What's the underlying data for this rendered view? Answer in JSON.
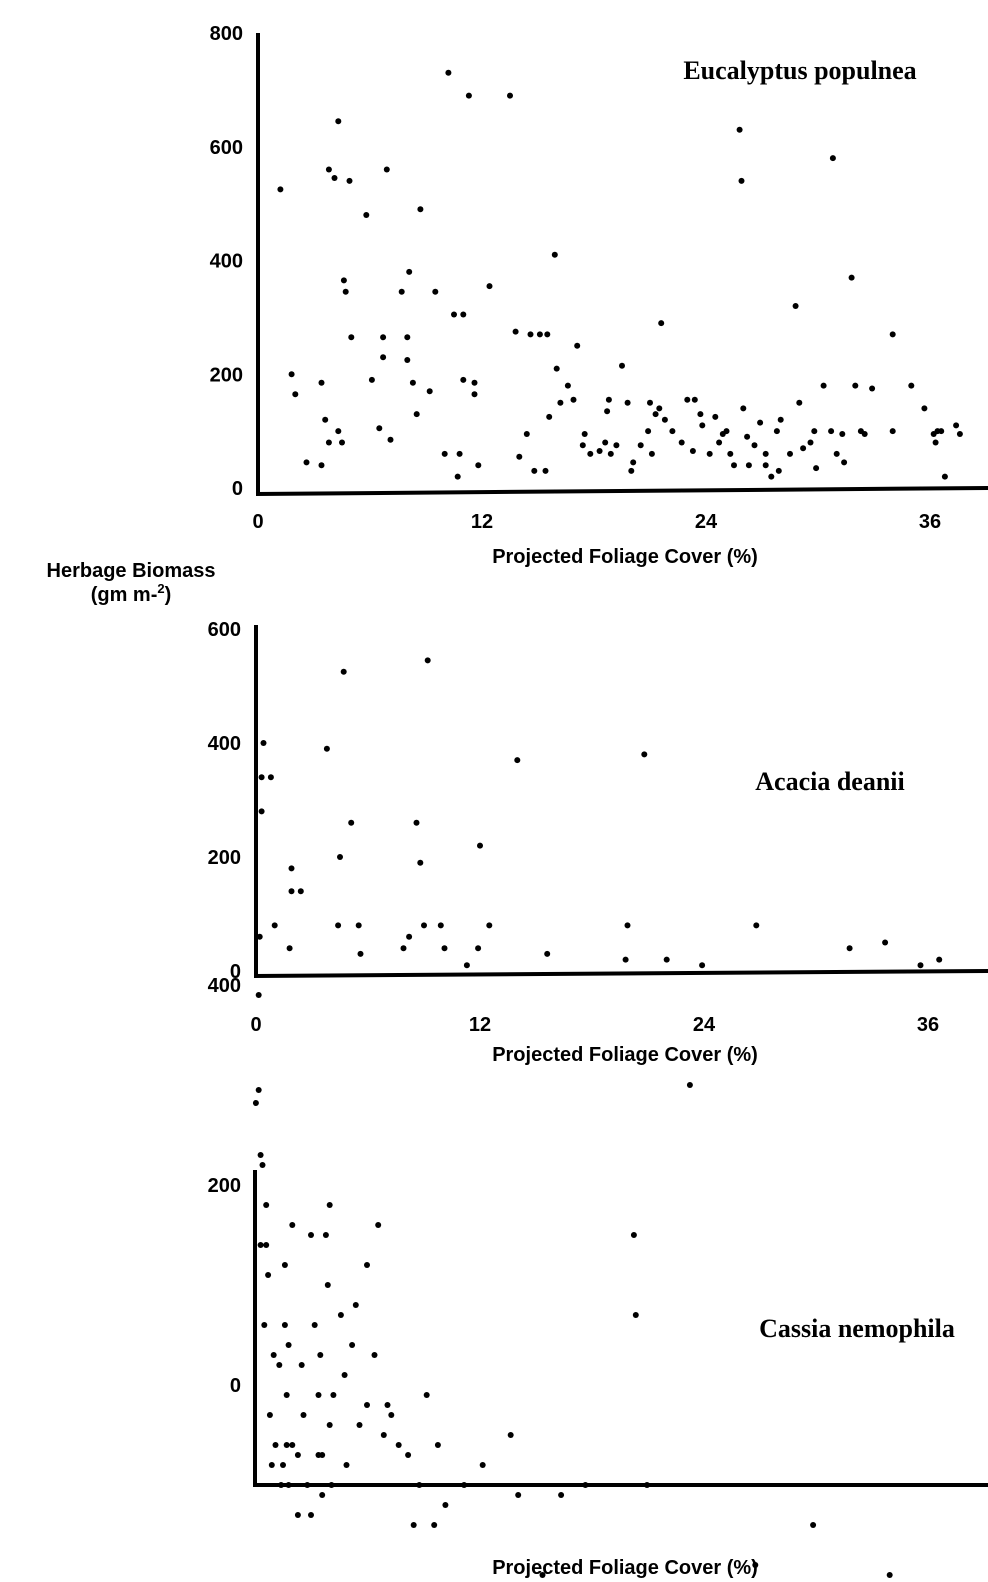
{
  "ylabel_line1": "Herbage Biomass",
  "ylabel_line2_prefix": "(gm m-",
  "ylabel_line2_sup": "2",
  "ylabel_line2_suffix": ")",
  "chart_data": [
    {
      "type": "scatter",
      "title": "Eucalyptus populnea",
      "xlabel": "Projected Foliage Cover (%)",
      "xlim": [
        0,
        39.5
      ],
      "ylim": [
        0,
        800
      ],
      "xticks": [
        0,
        12,
        24,
        36
      ],
      "yticks": [
        0,
        200,
        400,
        600,
        800
      ],
      "points": [
        [
          1.2,
          525
        ],
        [
          1.8,
          200
        ],
        [
          2,
          165
        ],
        [
          2.6,
          45
        ],
        [
          3.4,
          40
        ],
        [
          3.4,
          185
        ],
        [
          3.6,
          120
        ],
        [
          3.8,
          80
        ],
        [
          3.8,
          560
        ],
        [
          4.1,
          545
        ],
        [
          4.3,
          645
        ],
        [
          4.3,
          100
        ],
        [
          4.5,
          80
        ],
        [
          4.6,
          365
        ],
        [
          4.7,
          345
        ],
        [
          4.9,
          540
        ],
        [
          5,
          265
        ],
        [
          5.8,
          480
        ],
        [
          6.1,
          190
        ],
        [
          6.5,
          105
        ],
        [
          6.7,
          230
        ],
        [
          6.7,
          265
        ],
        [
          6.9,
          560
        ],
        [
          7.1,
          85
        ],
        [
          7.7,
          345
        ],
        [
          8,
          265
        ],
        [
          8,
          225
        ],
        [
          8.1,
          380
        ],
        [
          8.3,
          185
        ],
        [
          8.5,
          130
        ],
        [
          8.7,
          490
        ],
        [
          9.2,
          170
        ],
        [
          9.5,
          345
        ],
        [
          10,
          60
        ],
        [
          10.2,
          730
        ],
        [
          10.5,
          305
        ],
        [
          10.7,
          20
        ],
        [
          10.8,
          60
        ],
        [
          11,
          190
        ],
        [
          11,
          305
        ],
        [
          11.3,
          690
        ],
        [
          11.6,
          185
        ],
        [
          11.6,
          165
        ],
        [
          11.8,
          40
        ],
        [
          12.4,
          355
        ],
        [
          13.5,
          690
        ],
        [
          13.8,
          275
        ],
        [
          14.0,
          55
        ],
        [
          14.4,
          95
        ],
        [
          14.6,
          270
        ],
        [
          14.8,
          30
        ],
        [
          15.1,
          270
        ],
        [
          15.4,
          30
        ],
        [
          15.5,
          270
        ],
        [
          15.6,
          125
        ],
        [
          15.9,
          410
        ],
        [
          16,
          210
        ],
        [
          16.2,
          150
        ],
        [
          16.6,
          180
        ],
        [
          16.9,
          155
        ],
        [
          17.1,
          250
        ],
        [
          17.4,
          75
        ],
        [
          17.5,
          95
        ],
        [
          17.8,
          60
        ],
        [
          18.3,
          65
        ],
        [
          18.6,
          80
        ],
        [
          18.7,
          135
        ],
        [
          18.8,
          155
        ],
        [
          18.9,
          60
        ],
        [
          19.2,
          75
        ],
        [
          19.5,
          215
        ],
        [
          19.8,
          150
        ],
        [
          20,
          30
        ],
        [
          20.1,
          45
        ],
        [
          20.5,
          75
        ],
        [
          20.9,
          100
        ],
        [
          21,
          150
        ],
        [
          21.1,
          60
        ],
        [
          21.3,
          130
        ],
        [
          21.5,
          140
        ],
        [
          21.6,
          290
        ],
        [
          21.8,
          120
        ],
        [
          22.2,
          100
        ],
        [
          22.7,
          80
        ],
        [
          23,
          155
        ],
        [
          23.3,
          65
        ],
        [
          23.4,
          155
        ],
        [
          23.7,
          130
        ],
        [
          23.8,
          110
        ],
        [
          24.2,
          60
        ],
        [
          24.5,
          125
        ],
        [
          24.7,
          80
        ],
        [
          24.9,
          95
        ],
        [
          25.1,
          100
        ],
        [
          25.3,
          60
        ],
        [
          25.5,
          40
        ],
        [
          25.8,
          630
        ],
        [
          25.9,
          540
        ],
        [
          26,
          140
        ],
        [
          26.2,
          90
        ],
        [
          26.3,
          40
        ],
        [
          26.6,
          75
        ],
        [
          26.9,
          115
        ],
        [
          27.2,
          40
        ],
        [
          27.2,
          60
        ],
        [
          27.5,
          20
        ],
        [
          27.8,
          100
        ],
        [
          27.9,
          30
        ],
        [
          28,
          120
        ],
        [
          28.5,
          60
        ],
        [
          28.8,
          320
        ],
        [
          29,
          150
        ],
        [
          29.2,
          70
        ],
        [
          29.6,
          80
        ],
        [
          29.8,
          100
        ],
        [
          29.9,
          35
        ],
        [
          30.3,
          180
        ],
        [
          30.7,
          100
        ],
        [
          30.8,
          580
        ],
        [
          31,
          60
        ],
        [
          31.3,
          95
        ],
        [
          31.4,
          45
        ],
        [
          31.8,
          370
        ],
        [
          32,
          180
        ],
        [
          32.3,
          100
        ],
        [
          32.5,
          95
        ],
        [
          32.9,
          175
        ],
        [
          34.0,
          270
        ],
        [
          34.0,
          100
        ],
        [
          35.0,
          180
        ],
        [
          35.7,
          140
        ],
        [
          36.2,
          95
        ],
        [
          36.3,
          80
        ],
        [
          36.4,
          100
        ],
        [
          36.6,
          100
        ],
        [
          36.8,
          20
        ],
        [
          37.4,
          110
        ],
        [
          37.6,
          95
        ]
      ]
    },
    {
      "type": "scatter",
      "title": "Acacia deanii",
      "xlabel": "Projected Foliage Cover (%)",
      "xlim": [
        0,
        39.5
      ],
      "ylim": [
        0,
        600
      ],
      "xticks": [
        0,
        12,
        24,
        36
      ],
      "yticks": [
        0,
        200,
        400,
        600
      ],
      "points": [
        [
          0.2,
          60
        ],
        [
          0.3,
          340
        ],
        [
          0.3,
          280
        ],
        [
          0.4,
          400
        ],
        [
          0.8,
          340
        ],
        [
          1.0,
          80
        ],
        [
          1.8,
          40
        ],
        [
          1.9,
          140
        ],
        [
          1.9,
          180
        ],
        [
          2.4,
          140
        ],
        [
          3.8,
          390
        ],
        [
          4.5,
          200
        ],
        [
          4.4,
          80
        ],
        [
          4.7,
          525
        ],
        [
          5.1,
          260
        ],
        [
          5.5,
          80
        ],
        [
          5.6,
          30
        ],
        [
          7.9,
          40
        ],
        [
          8.2,
          60
        ],
        [
          8.6,
          260
        ],
        [
          8.8,
          190
        ],
        [
          9.0,
          80
        ],
        [
          9.2,
          545
        ],
        [
          9.9,
          80
        ],
        [
          10.1,
          40
        ],
        [
          11.3,
          10
        ],
        [
          11.9,
          40
        ],
        [
          12.0,
          220
        ],
        [
          12.5,
          80
        ],
        [
          14.0,
          370
        ],
        [
          15.6,
          30
        ],
        [
          19.8,
          20
        ],
        [
          19.9,
          80
        ],
        [
          20.8,
          380
        ],
        [
          22.0,
          20
        ],
        [
          23.9,
          10
        ],
        [
          26.8,
          80
        ],
        [
          31.8,
          40
        ],
        [
          33.7,
          50
        ],
        [
          35.6,
          10
        ],
        [
          36.6,
          20
        ]
      ]
    },
    {
      "type": "scatter",
      "title": "Cassia nemophila",
      "xlabel": "Projected Foliage Cover (%)",
      "xlim": [
        0,
        39.5
      ],
      "yticks": [
        0,
        200,
        400
      ],
      "yticks_note": "",
      "points_pixel_free_note": "",
      "points": [
        [
          0.05,
          282
        ],
        [
          0.2,
          390
        ],
        [
          0.2,
          295
        ],
        [
          0.3,
          230
        ],
        [
          0.3,
          140
        ],
        [
          0.4,
          220
        ],
        [
          0.5,
          60
        ],
        [
          0.6,
          140
        ],
        [
          0.6,
          180
        ],
        [
          0.7,
          110
        ],
        [
          0.8,
          -30
        ],
        [
          0.9,
          -80
        ],
        [
          1,
          30
        ],
        [
          1.1,
          -60
        ],
        [
          1.3,
          20
        ],
        [
          1.4,
          -100
        ],
        [
          1.5,
          -80
        ],
        [
          1.6,
          120
        ],
        [
          1.6,
          60
        ],
        [
          1.7,
          -60
        ],
        [
          1.7,
          -10
        ],
        [
          1.8,
          -100
        ],
        [
          1.8,
          40
        ],
        [
          2.0,
          -60
        ],
        [
          2.0,
          160
        ],
        [
          2.3,
          -70
        ],
        [
          2.3,
          -130
        ],
        [
          2.5,
          20
        ],
        [
          2.6,
          -30
        ],
        [
          2.8,
          -100
        ],
        [
          3.0,
          150
        ],
        [
          3.0,
          -130
        ],
        [
          3.2,
          60
        ],
        [
          3.4,
          -70
        ],
        [
          3.4,
          -10
        ],
        [
          3.5,
          30
        ],
        [
          3.6,
          -110
        ],
        [
          3.6,
          -70
        ],
        [
          3.8,
          150
        ],
        [
          3.9,
          100
        ],
        [
          4.0,
          180
        ],
        [
          4.0,
          -40
        ],
        [
          4.1,
          -100
        ],
        [
          4.2,
          -10
        ],
        [
          4.6,
          70
        ],
        [
          4.8,
          10
        ],
        [
          4.9,
          -80
        ],
        [
          5.2,
          40
        ],
        [
          5.4,
          80
        ],
        [
          5.6,
          -40
        ],
        [
          6.0,
          120
        ],
        [
          6.0,
          -20
        ],
        [
          6.4,
          30
        ],
        [
          6.6,
          160
        ],
        [
          6.9,
          -50
        ],
        [
          7.1,
          -20
        ],
        [
          7.3,
          -30
        ],
        [
          7.7,
          -60
        ],
        [
          8.2,
          -70
        ],
        [
          8.5,
          -140
        ],
        [
          8.8,
          -100
        ],
        [
          9.2,
          -10
        ],
        [
          9.6,
          -140
        ],
        [
          9.8,
          -60
        ],
        [
          10.2,
          -120
        ],
        [
          11.2,
          -100
        ],
        [
          12.2,
          -80
        ],
        [
          13.7,
          -50
        ],
        [
          14.1,
          -110
        ],
        [
          15.4,
          -190
        ],
        [
          16.4,
          -110
        ],
        [
          17.7,
          -100
        ],
        [
          20.3,
          150
        ],
        [
          20.4,
          70
        ],
        [
          21.0,
          -100
        ],
        [
          23.3,
          300
        ],
        [
          24.6,
          -220
        ],
        [
          26.8,
          -180
        ],
        [
          29.9,
          -140
        ],
        [
          34.0,
          -190
        ],
        [
          36.4,
          -210
        ]
      ]
    }
  ]
}
